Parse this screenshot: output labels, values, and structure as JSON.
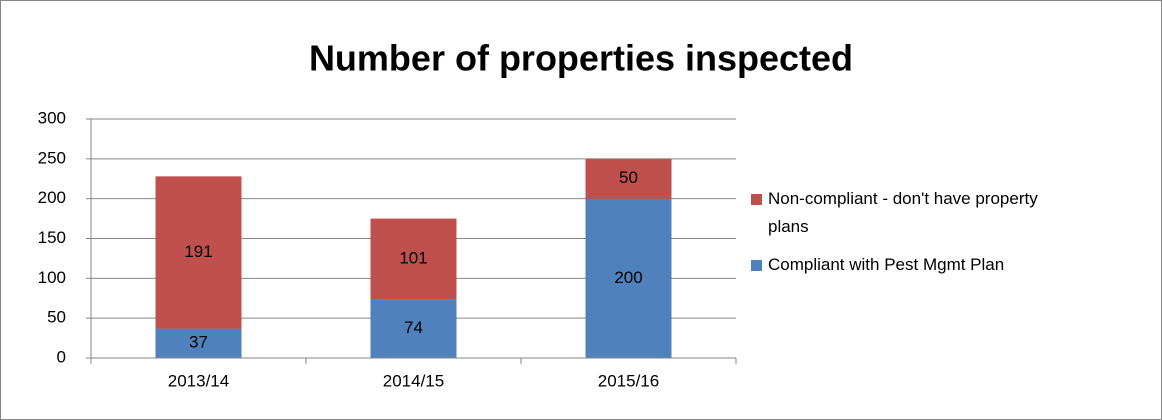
{
  "chart_data": {
    "type": "stacked_bar",
    "title": "Number of properties inspected",
    "categories": [
      "2013/14",
      "2014/15",
      "2015/16"
    ],
    "series": [
      {
        "name": "Compliant with Pest Mgmt Plan",
        "color": "#4f81bd",
        "values": [
          37,
          74,
          200
        ]
      },
      {
        "name": "Non-compliant - don't have property plans",
        "color": "#c0504d",
        "values": [
          191,
          101,
          50
        ]
      }
    ],
    "ylim": [
      0,
      300
    ],
    "yticks": [
      0,
      50,
      100,
      150,
      200,
      250,
      300
    ],
    "grid": true,
    "legend": "right"
  }
}
